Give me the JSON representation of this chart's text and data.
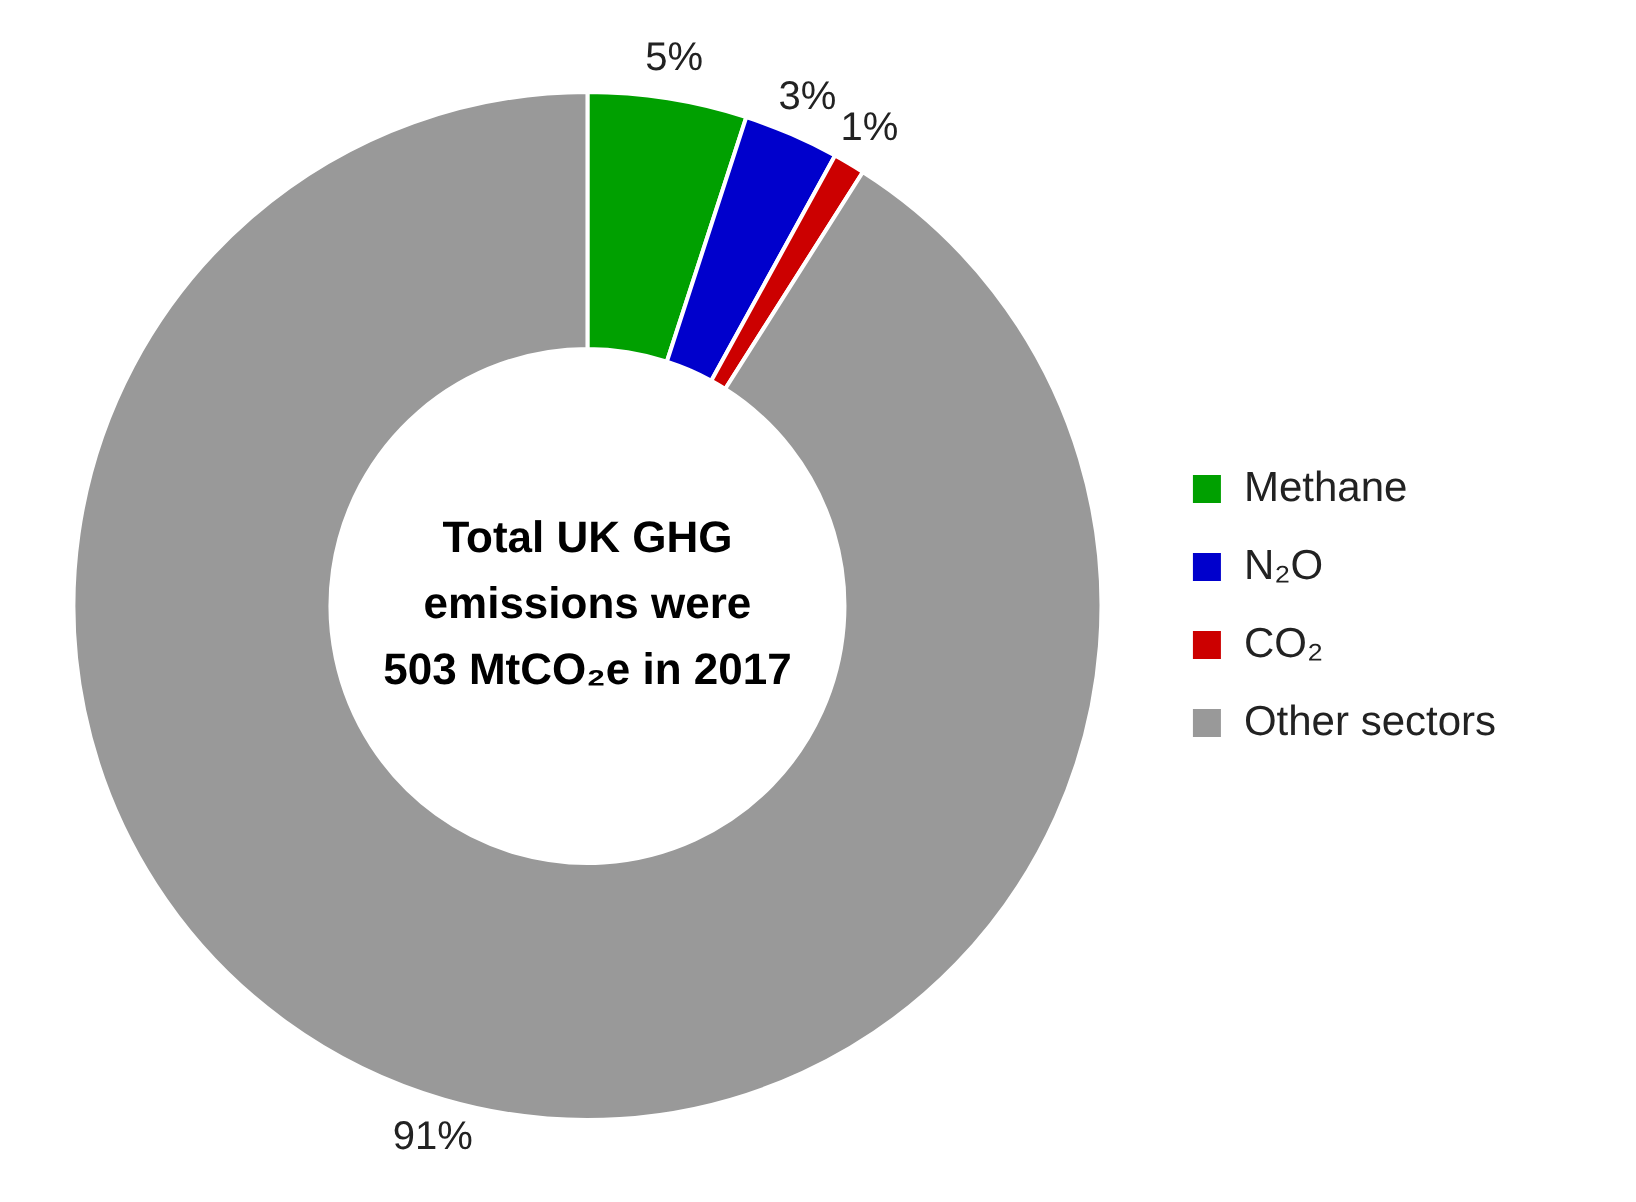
{
  "chart_data": {
    "type": "donut",
    "categories": [
      "Methane",
      "N₂O",
      "CO₂",
      "Other sectors"
    ],
    "values": [
      5,
      3,
      1,
      91
    ],
    "colors": [
      "#00a000",
      "#0000cc",
      "#cc0000",
      "#999999"
    ],
    "value_labels": [
      "5%",
      "3%",
      "1%",
      "91%"
    ],
    "annotations": [
      "Total UK GHG emissions were 503 MtCO₂e in 2017"
    ],
    "legend": "right"
  }
}
